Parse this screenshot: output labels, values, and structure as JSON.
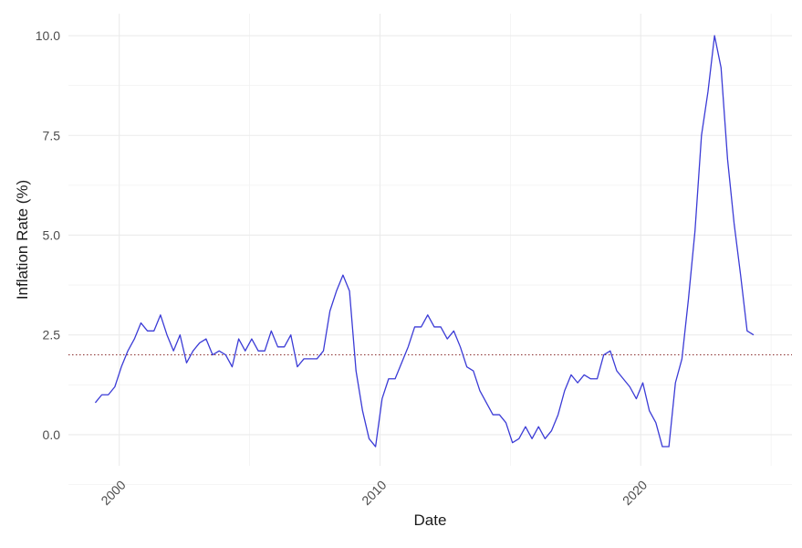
{
  "chart_data": {
    "type": "line",
    "xlabel": "Date",
    "ylabel": "Inflation Rate (%)",
    "x_ticks": [
      "2000",
      "2010",
      "2020"
    ],
    "y_ticks": [
      "0.0",
      "2.5",
      "5.0",
      "7.5",
      "10.0"
    ],
    "xlim": [
      1998.05,
      2025.8
    ],
    "ylim": [
      -0.78,
      10.55
    ],
    "grid": true,
    "legend": "none",
    "reference_line": {
      "y": 2.0,
      "style": "dotted",
      "color": "#8b2f2f"
    },
    "series": [
      {
        "color": "#3b3bd6",
        "points": [
          [
            1999.08,
            0.8
          ],
          [
            1999.33,
            1.0
          ],
          [
            1999.58,
            1.0
          ],
          [
            1999.83,
            1.2
          ],
          [
            2000.08,
            1.7
          ],
          [
            2000.33,
            2.1
          ],
          [
            2000.58,
            2.4
          ],
          [
            2000.83,
            2.8
          ],
          [
            2001.08,
            2.6
          ],
          [
            2001.33,
            2.6
          ],
          [
            2001.58,
            3.0
          ],
          [
            2001.83,
            2.5
          ],
          [
            2002.08,
            2.1
          ],
          [
            2002.33,
            2.5
          ],
          [
            2002.58,
            1.8
          ],
          [
            2002.83,
            2.1
          ],
          [
            2003.08,
            2.3
          ],
          [
            2003.33,
            2.4
          ],
          [
            2003.58,
            2.0
          ],
          [
            2003.83,
            2.1
          ],
          [
            2004.08,
            2.0
          ],
          [
            2004.33,
            1.7
          ],
          [
            2004.58,
            2.4
          ],
          [
            2004.83,
            2.1
          ],
          [
            2005.08,
            2.4
          ],
          [
            2005.33,
            2.1
          ],
          [
            2005.58,
            2.1
          ],
          [
            2005.83,
            2.6
          ],
          [
            2006.08,
            2.2
          ],
          [
            2006.33,
            2.2
          ],
          [
            2006.58,
            2.5
          ],
          [
            2006.83,
            1.7
          ],
          [
            2007.08,
            1.9
          ],
          [
            2007.33,
            1.9
          ],
          [
            2007.58,
            1.9
          ],
          [
            2007.83,
            2.1
          ],
          [
            2008.08,
            3.1
          ],
          [
            2008.33,
            3.6
          ],
          [
            2008.58,
            4.0
          ],
          [
            2008.83,
            3.6
          ],
          [
            2009.08,
            1.6
          ],
          [
            2009.33,
            0.6
          ],
          [
            2009.58,
            -0.1
          ],
          [
            2009.83,
            -0.3
          ],
          [
            2010.08,
            0.9
          ],
          [
            2010.33,
            1.4
          ],
          [
            2010.58,
            1.4
          ],
          [
            2010.83,
            1.8
          ],
          [
            2011.08,
            2.2
          ],
          [
            2011.33,
            2.7
          ],
          [
            2011.58,
            2.7
          ],
          [
            2011.83,
            3.0
          ],
          [
            2012.08,
            2.7
          ],
          [
            2012.33,
            2.7
          ],
          [
            2012.58,
            2.4
          ],
          [
            2012.83,
            2.6
          ],
          [
            2013.08,
            2.2
          ],
          [
            2013.33,
            1.7
          ],
          [
            2013.58,
            1.6
          ],
          [
            2013.83,
            1.1
          ],
          [
            2014.08,
            0.8
          ],
          [
            2014.33,
            0.5
          ],
          [
            2014.58,
            0.5
          ],
          [
            2014.83,
            0.3
          ],
          [
            2015.08,
            -0.2
          ],
          [
            2015.33,
            -0.1
          ],
          [
            2015.58,
            0.2
          ],
          [
            2015.83,
            -0.1
          ],
          [
            2016.08,
            0.2
          ],
          [
            2016.33,
            -0.1
          ],
          [
            2016.58,
            0.1
          ],
          [
            2016.83,
            0.5
          ],
          [
            2017.08,
            1.1
          ],
          [
            2017.33,
            1.5
          ],
          [
            2017.58,
            1.3
          ],
          [
            2017.83,
            1.5
          ],
          [
            2018.08,
            1.4
          ],
          [
            2018.33,
            1.4
          ],
          [
            2018.58,
            2.0
          ],
          [
            2018.83,
            2.1
          ],
          [
            2019.08,
            1.6
          ],
          [
            2019.33,
            1.4
          ],
          [
            2019.58,
            1.2
          ],
          [
            2019.83,
            0.9
          ],
          [
            2020.08,
            1.3
          ],
          [
            2020.33,
            0.6
          ],
          [
            2020.58,
            0.3
          ],
          [
            2020.83,
            -0.3
          ],
          [
            2021.08,
            -0.3
          ],
          [
            2021.33,
            1.3
          ],
          [
            2021.58,
            1.9
          ],
          [
            2021.83,
            3.4
          ],
          [
            2022.08,
            5.1
          ],
          [
            2022.33,
            7.5
          ],
          [
            2022.58,
            8.6
          ],
          [
            2022.83,
            10.0
          ],
          [
            2023.08,
            9.2
          ],
          [
            2023.33,
            6.9
          ],
          [
            2023.58,
            5.3
          ],
          [
            2023.83,
            4.0
          ],
          [
            2024.08,
            2.6
          ],
          [
            2024.33,
            2.5
          ]
        ]
      }
    ]
  }
}
